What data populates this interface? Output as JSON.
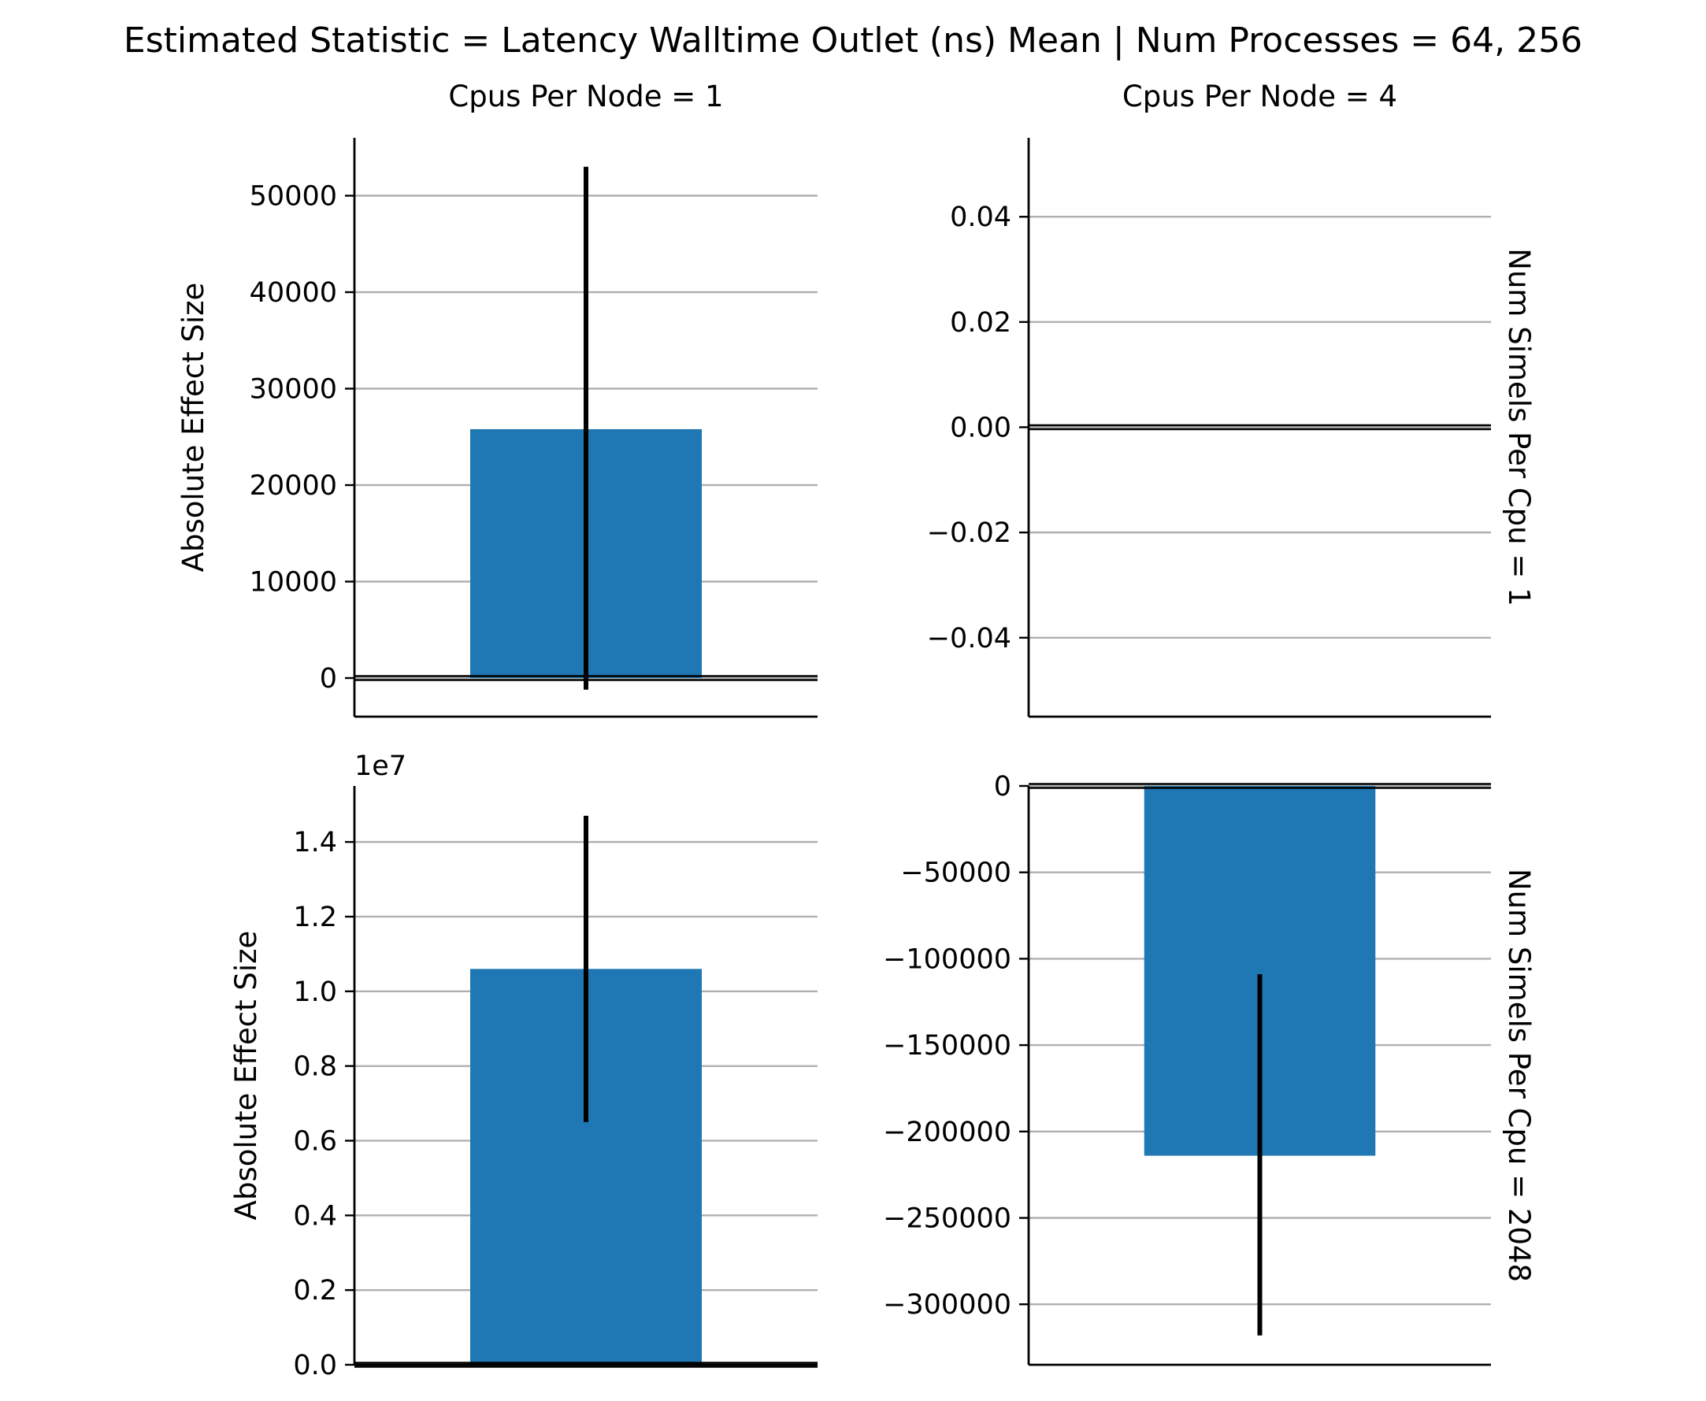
{
  "title": "Estimated Statistic = Latency Walltime Outlet (ns) Mean | Num Processes = 64, 256",
  "chart_data": [
    {
      "type": "bar",
      "col_title": "Cpus Per Node = 1",
      "row_label": "",
      "ylabel": "Absolute Effect Size",
      "offset_label": "",
      "ylim": [
        -4000,
        56000
      ],
      "yticks": [
        0,
        10000,
        20000,
        30000,
        40000,
        50000
      ],
      "ytick_labels": [
        "0",
        "10000",
        "20000",
        "30000",
        "40000",
        "50000"
      ],
      "value": 25800,
      "err_low": -1200,
      "err_high": 53000,
      "color": "#1f77b4"
    },
    {
      "type": "bar",
      "col_title": "Cpus Per Node = 4",
      "row_label": "Num Simels Per Cpu = 1",
      "ylabel": "",
      "offset_label": "",
      "ylim": [
        -0.055,
        0.055
      ],
      "yticks": [
        -0.04,
        -0.02,
        0.0,
        0.02,
        0.04
      ],
      "ytick_labels": [
        "−0.04",
        "−0.02",
        "0.00",
        "0.02",
        "0.04"
      ],
      "value": 0,
      "err_low": 0,
      "err_high": 0,
      "color": "#1f77b4"
    },
    {
      "type": "bar",
      "col_title": "",
      "row_label": "",
      "ylabel": "Absolute Effect Size",
      "offset_label": "1e7",
      "ylim": [
        0,
        15500000
      ],
      "yticks": [
        0,
        2000000,
        4000000,
        6000000,
        8000000,
        10000000,
        12000000,
        14000000
      ],
      "ytick_labels": [
        "0.0",
        "0.2",
        "0.4",
        "0.6",
        "0.8",
        "1.0",
        "1.2",
        "1.4"
      ],
      "value": 10600000,
      "err_low": 6500000,
      "err_high": 14700000,
      "color": "#1f77b4"
    },
    {
      "type": "bar",
      "col_title": "",
      "row_label": "Num Simels Per Cpu = 2048",
      "ylabel": "",
      "offset_label": "",
      "ylim": [
        -335000,
        0
      ],
      "yticks": [
        -300000,
        -250000,
        -200000,
        -150000,
        -100000,
        -50000,
        0
      ],
      "ytick_labels": [
        "−300000",
        "−250000",
        "−200000",
        "−150000",
        "−100000",
        "−50000",
        "0"
      ],
      "value": -214000,
      "err_low": -318000,
      "err_high": -109000,
      "color": "#1f77b4"
    }
  ]
}
